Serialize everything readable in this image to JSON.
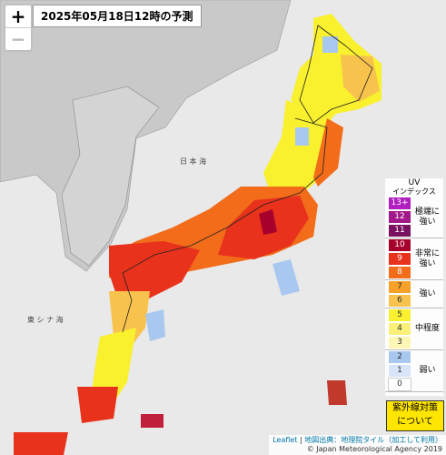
{
  "header": {
    "title": "2025年05月18日12時の予測"
  },
  "controls": {
    "zoom_in": "+",
    "zoom_out": "−"
  },
  "map_labels": [
    "日 本 海",
    "東 シ ナ 海"
  ],
  "legend": {
    "title": "UV",
    "subtitle": "インデックス",
    "groups": [
      {
        "label": "極端に強い",
        "levels": [
          {
            "level": "13+",
            "color": "#b01ec0"
          },
          {
            "level": 12,
            "color": "#a0188a"
          },
          {
            "level": 11,
            "color": "#7a1060"
          }
        ]
      },
      {
        "label": "非常に強い",
        "levels": [
          {
            "level": 10,
            "color": "#a8002c"
          },
          {
            "level": 9,
            "color": "#e8321c"
          },
          {
            "level": 8,
            "color": "#f26c1a"
          }
        ]
      },
      {
        "label": "強い",
        "levels": [
          {
            "level": 7,
            "color": "#f5a12a"
          },
          {
            "level": 6,
            "color": "#f7c34d"
          }
        ]
      },
      {
        "label": "中程度",
        "levels": [
          {
            "level": 5,
            "color": "#f9f02e"
          },
          {
            "level": 4,
            "color": "#faf07a"
          },
          {
            "level": 3,
            "color": "#fdf6b4"
          }
        ]
      },
      {
        "label": "弱い",
        "levels": [
          {
            "level": 2,
            "color": "#a8c8f0"
          },
          {
            "level": 1,
            "color": "#d8e4f8"
          },
          {
            "level": 0,
            "color": "#ffffff"
          }
        ]
      }
    ]
  },
  "button": {
    "lines": [
      "紫外線対策",
      "について"
    ]
  },
  "attribution": {
    "leaflet": "Leaflet",
    "source": "地図出典：地理院タイル（加工して利用）",
    "copyright": "© Japan Meteorological Agency 2019"
  }
}
